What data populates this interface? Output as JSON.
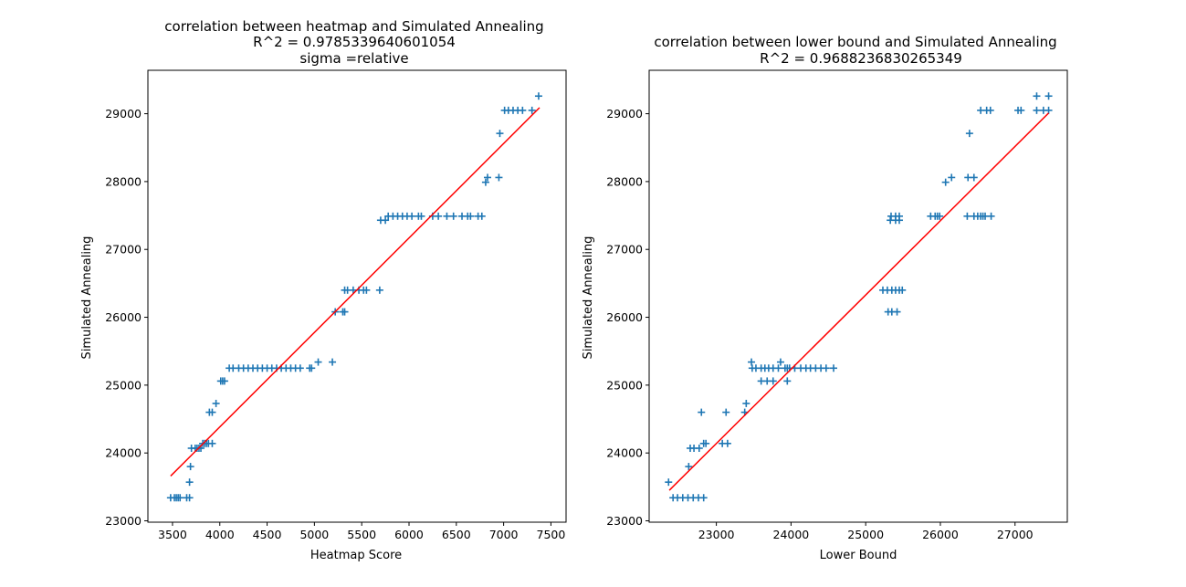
{
  "chart_data": [
    {
      "type": "scatter",
      "title_lines": [
        "correlation between heatmap and Simulated Annealing",
        "R^2 = 0.9785339640601054",
        "sigma =relative"
      ],
      "xlabel": "Heatmap Score",
      "ylabel": "Simulated Annealing",
      "xlim": [
        3240,
        7660
      ],
      "ylim": [
        22980,
        29640
      ],
      "xticks": [
        3500,
        4000,
        4500,
        5000,
        5500,
        6000,
        6500,
        7000,
        7500
      ],
      "yticks": [
        23000,
        24000,
        25000,
        26000,
        27000,
        28000,
        29000
      ],
      "marker": "+",
      "marker_color": "#1f77b4",
      "fit_color": "#ff0000",
      "fit_line": [
        [
          3480,
          23660
        ],
        [
          7380,
          29090
        ]
      ],
      "points": [
        [
          3480,
          23340
        ],
        [
          3520,
          23340
        ],
        [
          3540,
          23340
        ],
        [
          3560,
          23340
        ],
        [
          3580,
          23340
        ],
        [
          3650,
          23340
        ],
        [
          3680,
          23340
        ],
        [
          3680,
          23570
        ],
        [
          3690,
          23800
        ],
        [
          3700,
          24070
        ],
        [
          3740,
          24070
        ],
        [
          3760,
          24070
        ],
        [
          3780,
          24070
        ],
        [
          3800,
          24070
        ],
        [
          3820,
          24140
        ],
        [
          3840,
          24140
        ],
        [
          3860,
          24140
        ],
        [
          3880,
          24140
        ],
        [
          3920,
          24140
        ],
        [
          3890,
          24600
        ],
        [
          3920,
          24600
        ],
        [
          3960,
          24730
        ],
        [
          4010,
          25060
        ],
        [
          4030,
          25060
        ],
        [
          4050,
          25060
        ],
        [
          4100,
          25250
        ],
        [
          4140,
          25250
        ],
        [
          4200,
          25250
        ],
        [
          4250,
          25250
        ],
        [
          4300,
          25250
        ],
        [
          4350,
          25250
        ],
        [
          4400,
          25250
        ],
        [
          4450,
          25250
        ],
        [
          4500,
          25250
        ],
        [
          4550,
          25250
        ],
        [
          4600,
          25250
        ],
        [
          4650,
          25250
        ],
        [
          4700,
          25250
        ],
        [
          4750,
          25250
        ],
        [
          4800,
          25250
        ],
        [
          4850,
          25250
        ],
        [
          4950,
          25250
        ],
        [
          4970,
          25250
        ],
        [
          5040,
          25340
        ],
        [
          5190,
          25340
        ],
        [
          5220,
          26080
        ],
        [
          5300,
          26080
        ],
        [
          5320,
          26080
        ],
        [
          5320,
          26400
        ],
        [
          5350,
          26400
        ],
        [
          5410,
          26400
        ],
        [
          5470,
          26400
        ],
        [
          5520,
          26400
        ],
        [
          5550,
          26400
        ],
        [
          5690,
          26400
        ],
        [
          5700,
          27430
        ],
        [
          5750,
          27430
        ],
        [
          5780,
          27490
        ],
        [
          5830,
          27490
        ],
        [
          5880,
          27490
        ],
        [
          5930,
          27490
        ],
        [
          5980,
          27490
        ],
        [
          6030,
          27490
        ],
        [
          6100,
          27490
        ],
        [
          6130,
          27490
        ],
        [
          6250,
          27490
        ],
        [
          6310,
          27490
        ],
        [
          6400,
          27490
        ],
        [
          6470,
          27490
        ],
        [
          6560,
          27490
        ],
        [
          6620,
          27490
        ],
        [
          6650,
          27490
        ],
        [
          6730,
          27490
        ],
        [
          6770,
          27490
        ],
        [
          6810,
          27990
        ],
        [
          6830,
          28060
        ],
        [
          6950,
          28060
        ],
        [
          6960,
          28710
        ],
        [
          7010,
          29050
        ],
        [
          7050,
          29050
        ],
        [
          7100,
          29050
        ],
        [
          7150,
          29050
        ],
        [
          7200,
          29050
        ],
        [
          7300,
          29050
        ],
        [
          7370,
          29260
        ]
      ]
    },
    {
      "type": "scatter",
      "title_lines": [
        "correlation between lower bound and Simulated Annealing",
        "R^2 = 0.9688236830265349"
      ],
      "xlabel": "Lower Bound",
      "ylabel": "Simulated Annealing",
      "xlim": [
        22100,
        27700
      ],
      "ylim": [
        22980,
        29640
      ],
      "xticks": [
        23000,
        24000,
        25000,
        26000,
        27000
      ],
      "yticks": [
        23000,
        24000,
        25000,
        26000,
        27000,
        28000,
        29000
      ],
      "marker": "+",
      "marker_color": "#1f77b4",
      "fit_color": "#ff0000",
      "fit_line": [
        [
          22370,
          23450
        ],
        [
          27450,
          29010
        ]
      ],
      "points": [
        [
          22360,
          23570
        ],
        [
          22420,
          23340
        ],
        [
          22480,
          23340
        ],
        [
          22550,
          23340
        ],
        [
          22620,
          23340
        ],
        [
          22690,
          23340
        ],
        [
          22760,
          23340
        ],
        [
          22830,
          23340
        ],
        [
          22630,
          23800
        ],
        [
          22650,
          24070
        ],
        [
          22700,
          24070
        ],
        [
          22770,
          24070
        ],
        [
          22830,
          24140
        ],
        [
          22860,
          24140
        ],
        [
          23080,
          24140
        ],
        [
          23150,
          24140
        ],
        [
          22800,
          24600
        ],
        [
          23130,
          24600
        ],
        [
          23380,
          24600
        ],
        [
          23400,
          24730
        ],
        [
          23470,
          25340
        ],
        [
          23860,
          25340
        ],
        [
          23480,
          25250
        ],
        [
          23530,
          25250
        ],
        [
          23600,
          25250
        ],
        [
          23650,
          25250
        ],
        [
          23700,
          25250
        ],
        [
          23760,
          25250
        ],
        [
          23830,
          25250
        ],
        [
          23920,
          25250
        ],
        [
          23950,
          25250
        ],
        [
          23980,
          25250
        ],
        [
          24050,
          25250
        ],
        [
          24130,
          25250
        ],
        [
          24200,
          25250
        ],
        [
          24260,
          25250
        ],
        [
          24330,
          25250
        ],
        [
          24400,
          25250
        ],
        [
          24470,
          25250
        ],
        [
          24570,
          25250
        ],
        [
          23600,
          25060
        ],
        [
          23680,
          25060
        ],
        [
          23760,
          25060
        ],
        [
          23950,
          25060
        ],
        [
          25230,
          26400
        ],
        [
          25290,
          26400
        ],
        [
          25350,
          26400
        ],
        [
          25400,
          26400
        ],
        [
          25450,
          26400
        ],
        [
          25490,
          26400
        ],
        [
          25300,
          26080
        ],
        [
          25350,
          26080
        ],
        [
          25420,
          26080
        ],
        [
          25330,
          27430
        ],
        [
          25400,
          27430
        ],
        [
          25450,
          27430
        ],
        [
          25340,
          27490
        ],
        [
          25400,
          27490
        ],
        [
          25450,
          27490
        ],
        [
          25870,
          27490
        ],
        [
          25930,
          27490
        ],
        [
          25960,
          27490
        ],
        [
          25990,
          27490
        ],
        [
          26360,
          27490
        ],
        [
          26450,
          27490
        ],
        [
          26500,
          27490
        ],
        [
          26540,
          27490
        ],
        [
          26570,
          27490
        ],
        [
          26600,
          27490
        ],
        [
          26680,
          27490
        ],
        [
          26070,
          27990
        ],
        [
          26150,
          28060
        ],
        [
          26370,
          28060
        ],
        [
          26450,
          28060
        ],
        [
          26390,
          28710
        ],
        [
          26540,
          29050
        ],
        [
          26620,
          29050
        ],
        [
          26670,
          29050
        ],
        [
          27040,
          29050
        ],
        [
          27080,
          29050
        ],
        [
          27290,
          29050
        ],
        [
          27380,
          29050
        ],
        [
          27450,
          29050
        ],
        [
          27290,
          29260
        ],
        [
          27450,
          29260
        ]
      ]
    }
  ]
}
